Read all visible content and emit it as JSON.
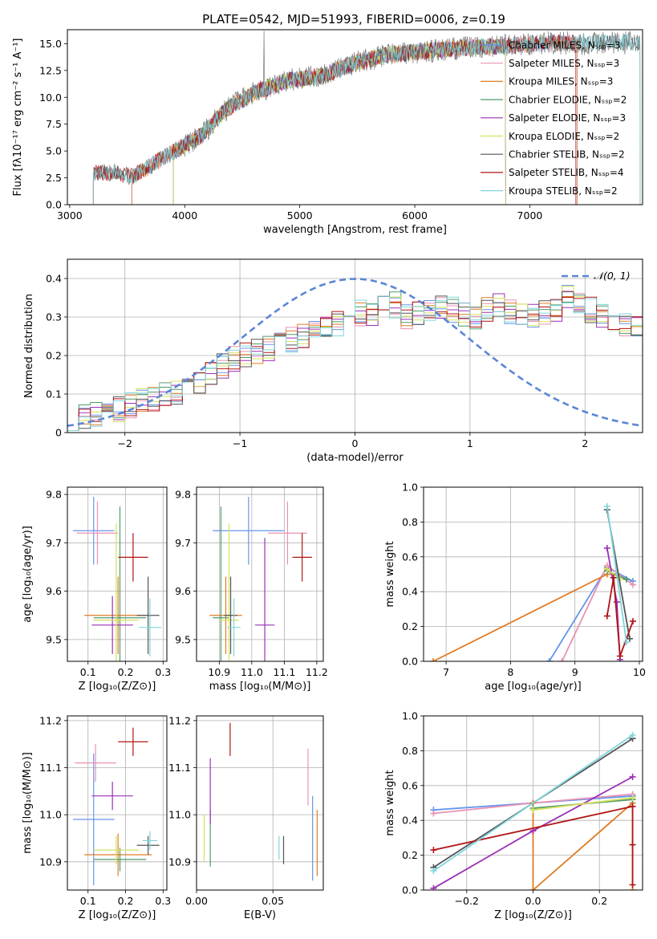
{
  "figure": {
    "title": "PLATE=0542, MJD=51993, FIBERID=0006, z=0.19"
  },
  "colors": {
    "Chabrier MILES": "#6495ed",
    "Salpeter MILES": "#e991b6",
    "Kroupa MILES": "#e07c24",
    "Chabrier ELODIE": "#4f9a6a",
    "Salpeter ELODIE": "#9b30b5",
    "Kroupa ELODIE": "#d6e05a",
    "Chabrier STELIB": "#555555",
    "Salpeter STELIB": "#b01515",
    "Kroupa STELIB": "#7fd6dd"
  },
  "chart_data": [
    {
      "id": "spectrum",
      "type": "line",
      "xlabel": "wavelength [Angstrom, rest frame]",
      "ylabel": "Flux [fλ10⁻¹⁷ erg cm⁻² s⁻¹ A⁻¹]",
      "xlim": [
        2980,
        7980
      ],
      "ylim": [
        0,
        16.3
      ],
      "xticks": [
        3000,
        4000,
        5000,
        6000,
        7000
      ],
      "yticks": [
        0.0,
        2.5,
        5.0,
        7.5,
        10.0,
        12.5,
        15.0
      ],
      "grid": false,
      "legend_position": "right",
      "continuum_knots": [
        [
          3205,
          3.0
        ],
        [
          3400,
          3.0
        ],
        [
          3540,
          2.6
        ],
        [
          3700,
          3.6
        ],
        [
          3850,
          4.6
        ],
        [
          3950,
          5.2
        ],
        [
          4150,
          6.5
        ],
        [
          4350,
          8.8
        ],
        [
          4600,
          10.4
        ],
        [
          4900,
          11.6
        ],
        [
          5200,
          12.0
        ],
        [
          5500,
          13.3
        ],
        [
          5800,
          14.0
        ],
        [
          6100,
          14.3
        ],
        [
          6400,
          14.6
        ],
        [
          6800,
          14.8
        ],
        [
          7200,
          15.1
        ],
        [
          7450,
          15.0
        ],
        [
          7960,
          15.1
        ]
      ],
      "series": [
        {
          "name": "Chabrier MILES, Nₛₛₚ=3",
          "color": "#6495ed",
          "range": [
            3540,
            7410
          ]
        },
        {
          "name": "Salpeter MILES, Nₛₛₚ=3",
          "color": "#e991b6",
          "range": [
            3540,
            7410
          ]
        },
        {
          "name": "Kroupa MILES, Nₛₛₚ=3",
          "color": "#e07c24",
          "range": [
            3540,
            7410
          ]
        },
        {
          "name": "Chabrier ELODIE, Nₛₛₚ=2",
          "color": "#4f9a6a",
          "range": [
            3900,
            6790
          ]
        },
        {
          "name": "Salpeter ELODIE, Nₛₛₚ=3",
          "color": "#9b30b5",
          "range": [
            3900,
            6790
          ]
        },
        {
          "name": "Kroupa ELODIE, Nₛₛₚ=2",
          "color": "#d6e05a",
          "range": [
            3900,
            6790
          ]
        },
        {
          "name": "Chabrier STELIB, Nₛₛₚ=2",
          "color": "#555555",
          "range": [
            3205,
            7960
          ]
        },
        {
          "name": "Salpeter STELIB, Nₛₛₚ=4",
          "color": "#b01515",
          "range": [
            3205,
            7400
          ]
        },
        {
          "name": "Kroupa STELIB, Nₛₛₚ=2",
          "color": "#7fd6dd",
          "range": [
            3205,
            7960
          ]
        }
      ]
    },
    {
      "id": "residuals",
      "type": "area",
      "xlabel": "(data-model)/error",
      "ylabel": "Normed distribution",
      "xlim": [
        -2.5,
        2.5
      ],
      "ylim": [
        0,
        0.45
      ],
      "xticks": [
        -2,
        -1,
        0,
        1,
        2
      ],
      "yticks": [
        0.0,
        0.1,
        0.2,
        0.3,
        0.4
      ],
      "grid": true,
      "legend_position": "top-right",
      "reference_curve": {
        "name": "𝒩(0, 1)",
        "mean": 0,
        "sigma": 1,
        "color": "#5b86d6"
      },
      "bin_width": 0.1,
      "bin_start": -2.5,
      "base_profile": [
        0.04,
        0.045,
        0.05,
        0.055,
        0.06,
        0.07,
        0.08,
        0.09,
        0.095,
        0.1,
        0.11,
        0.13,
        0.15,
        0.17,
        0.19,
        0.2,
        0.21,
        0.22,
        0.23,
        0.24,
        0.25,
        0.26,
        0.27,
        0.28,
        0.3,
        0.31,
        0.3,
        0.32,
        0.33,
        0.3,
        0.31,
        0.32,
        0.33,
        0.32,
        0.31,
        0.3,
        0.32,
        0.33,
        0.31,
        0.31,
        0.3,
        0.31,
        0.32,
        0.35,
        0.33,
        0.32,
        0.3,
        0.29,
        0.28,
        0.28,
        0.27,
        0.26,
        0.25,
        0.22,
        0.2,
        0.19,
        0.18,
        0.18,
        0.17,
        0.16,
        0.15,
        0.14,
        0.13,
        0.12,
        0.11,
        0.1,
        0.095,
        0.09,
        0.085,
        0.08,
        0.075,
        0.07,
        0.065,
        0.06,
        0.055,
        0.05,
        0.05,
        0.045,
        0.045,
        0.04,
        0.04,
        0.04,
        0.04,
        0.04,
        0.04,
        0.04,
        0.04,
        0.04,
        0.04,
        0.04,
        0.04,
        0.04,
        0.04,
        0.04,
        0.04,
        0.04,
        0.04,
        0.04,
        0.04,
        0.04
      ]
    },
    {
      "id": "age_vs_Z",
      "type": "scatter",
      "xlabel": "Z [log₁₀(Z/Z⊙)]",
      "ylabel": "age  [log₁₀(age/yr)]",
      "xlim": [
        0.045,
        0.31
      ],
      "ylim": [
        9.455,
        9.815
      ],
      "xticks": [
        0.1,
        0.2,
        0.3
      ],
      "yticks": [
        9.5,
        9.6,
        9.7,
        9.8
      ],
      "grid": true,
      "points": [
        {
          "series": "Chabrier MILES",
          "x": 0.115,
          "y": 9.725,
          "xerr": 0.055,
          "yerr": 0.07
        },
        {
          "series": "Salpeter MILES",
          "x": 0.125,
          "y": 9.72,
          "xerr": 0.055,
          "yerr": 0.065
        },
        {
          "series": "Kroupa MILES",
          "x": 0.18,
          "y": 9.55,
          "xerr": 0.09,
          "yerr": 0.08
        },
        {
          "series": "Chabrier ELODIE",
          "x": 0.185,
          "y": 9.545,
          "xerr": 0.07,
          "yerr": 0.23
        },
        {
          "series": "Salpeter ELODIE",
          "x": 0.165,
          "y": 9.53,
          "xerr": 0.055,
          "yerr": 0.06
        },
        {
          "series": "Kroupa ELODIE",
          "x": 0.175,
          "y": 9.54,
          "xerr": 0.06,
          "yerr": 0.2
        },
        {
          "series": "Chabrier STELIB",
          "x": 0.26,
          "y": 9.55,
          "xerr": 0.03,
          "yerr": 0.08
        },
        {
          "series": "Salpeter STELIB",
          "x": 0.22,
          "y": 9.67,
          "xerr": 0.04,
          "yerr": 0.05
        },
        {
          "series": "Kroupa STELIB",
          "x": 0.265,
          "y": 9.525,
          "xerr": 0.03,
          "yerr": 0.06
        }
      ]
    },
    {
      "id": "age_vs_mass",
      "type": "scatter",
      "xlabel": "mass [log₁₀(M/M⊙)]",
      "ylabel": "",
      "xlim": [
        10.83,
        11.22
      ],
      "ylim": [
        9.455,
        9.815
      ],
      "xticks": [
        10.9,
        11.0,
        11.1,
        11.2
      ],
      "yticks": [
        9.5,
        9.6,
        9.7,
        9.8
      ],
      "grid": true,
      "points": [
        {
          "series": "Chabrier MILES",
          "x": 10.99,
          "y": 9.725,
          "xerr": 0.11,
          "yerr": 0.07
        },
        {
          "series": "Salpeter MILES",
          "x": 11.11,
          "y": 9.72,
          "xerr": 0.06,
          "yerr": 0.065
        },
        {
          "series": "Kroupa MILES",
          "x": 10.92,
          "y": 9.55,
          "xerr": 0.05,
          "yerr": 0.08
        },
        {
          "series": "Chabrier ELODIE",
          "x": 10.905,
          "y": 9.545,
          "xerr": 0.025,
          "yerr": 0.23
        },
        {
          "series": "Salpeter ELODIE",
          "x": 11.04,
          "y": 9.53,
          "xerr": 0.03,
          "yerr": 0.18
        },
        {
          "series": "Kroupa ELODIE",
          "x": 10.93,
          "y": 9.54,
          "xerr": 0.03,
          "yerr": 0.2
        },
        {
          "series": "Chabrier STELIB",
          "x": 10.935,
          "y": 9.55,
          "xerr": 0.02,
          "yerr": 0.08
        },
        {
          "series": "Salpeter STELIB",
          "x": 11.155,
          "y": 9.67,
          "xerr": 0.03,
          "yerr": 0.05
        },
        {
          "series": "Kroupa STELIB",
          "x": 10.945,
          "y": 9.525,
          "xerr": 0.02,
          "yerr": 0.06
        }
      ]
    },
    {
      "id": "weight_vs_age",
      "type": "line",
      "xlabel": "age  [log₁₀(age/yr)]",
      "ylabel": "mass weight",
      "xlim": [
        6.65,
        10.05
      ],
      "ylim": [
        0,
        1.0
      ],
      "xticks": [
        7,
        8,
        9,
        10
      ],
      "yticks": [
        0.0,
        0.2,
        0.4,
        0.6,
        0.8,
        1.0
      ],
      "grid": true,
      "series": [
        {
          "name": "Chabrier MILES",
          "color": "#6495ed",
          "x": [
            8.6,
            9.5,
            9.9
          ],
          "y": [
            0.0,
            0.54,
            0.46
          ]
        },
        {
          "name": "Salpeter MILES",
          "color": "#e991b6",
          "x": [
            8.8,
            9.5,
            9.9
          ],
          "y": [
            0.0,
            0.55,
            0.44
          ]
        },
        {
          "name": "Kroupa MILES",
          "color": "#e07c24",
          "x": [
            6.8,
            9.5,
            9.65
          ],
          "y": [
            0.0,
            0.5,
            0.5
          ]
        },
        {
          "name": "Chabrier ELODIE",
          "color": "#4f9a6a",
          "x": [
            9.5,
            9.8
          ],
          "y": [
            0.52,
            0.47
          ]
        },
        {
          "name": "Salpeter ELODIE",
          "color": "#9b30b5",
          "x": [
            9.5,
            9.65,
            9.7
          ],
          "y": [
            0.65,
            0.34,
            0.01
          ]
        },
        {
          "name": "Kroupa ELODIE",
          "color": "#d6e05a",
          "x": [
            9.5,
            9.7
          ],
          "y": [
            0.53,
            0.47
          ]
        },
        {
          "name": "Chabrier STELIB",
          "color": "#555555",
          "x": [
            9.5,
            9.85
          ],
          "y": [
            0.87,
            0.13
          ]
        },
        {
          "name": "Salpeter STELIB",
          "color": "#b01515",
          "x": [
            9.5,
            9.6,
            9.7,
            9.9
          ],
          "y": [
            0.26,
            0.48,
            0.03,
            0.23
          ]
        },
        {
          "name": "Kroupa STELIB",
          "color": "#7fd6dd",
          "x": [
            9.5,
            9.8
          ],
          "y": [
            0.89,
            0.11
          ]
        }
      ]
    },
    {
      "id": "mass_vs_Z",
      "type": "scatter",
      "xlabel": "Z [log₁₀(Z/Z⊙)]",
      "ylabel": "mass [log₁₀(M/M⊙)]",
      "xlim": [
        0.045,
        0.31
      ],
      "ylim": [
        10.84,
        11.21
      ],
      "xticks": [
        0.1,
        0.2,
        0.3
      ],
      "yticks": [
        10.9,
        11.0,
        11.1,
        11.2
      ],
      "grid": true,
      "points": [
        {
          "series": "Chabrier MILES",
          "x": 0.115,
          "y": 10.99,
          "xerr": 0.055,
          "yerr": 0.14
        },
        {
          "series": "Salpeter MILES",
          "x": 0.12,
          "y": 11.11,
          "xerr": 0.055,
          "yerr": 0.04
        },
        {
          "series": "Kroupa MILES",
          "x": 0.18,
          "y": 10.915,
          "xerr": 0.09,
          "yerr": 0.045
        },
        {
          "series": "Chabrier ELODIE",
          "x": 0.185,
          "y": 10.905,
          "xerr": 0.07,
          "yerr": 0.025
        },
        {
          "series": "Salpeter ELODIE",
          "x": 0.165,
          "y": 11.04,
          "xerr": 0.055,
          "yerr": 0.03
        },
        {
          "series": "Kroupa ELODIE",
          "x": 0.175,
          "y": 10.925,
          "xerr": 0.06,
          "yerr": 0.03
        },
        {
          "series": "Chabrier STELIB",
          "x": 0.26,
          "y": 10.935,
          "xerr": 0.03,
          "yerr": 0.02
        },
        {
          "series": "Salpeter STELIB",
          "x": 0.22,
          "y": 11.155,
          "xerr": 0.04,
          "yerr": 0.03
        },
        {
          "series": "Kroupa STELIB",
          "x": 0.265,
          "y": 10.945,
          "xerr": 0.02,
          "yerr": 0.02
        }
      ]
    },
    {
      "id": "mass_vs_ebv",
      "type": "scatter",
      "xlabel": "E(B-V)",
      "ylabel": "",
      "xlim": [
        0,
        0.083
      ],
      "ylim": [
        10.84,
        11.21
      ],
      "xticks": [
        0.0,
        0.05
      ],
      "yticks": [
        10.9,
        11.0,
        11.1,
        11.2
      ],
      "grid": true,
      "points": [
        {
          "series": "Chabrier MILES",
          "x": 0.076,
          "y": 10.95,
          "xerr": 0.0,
          "yerr": 0.09
        },
        {
          "series": "Salpeter MILES",
          "x": 0.073,
          "y": 11.08,
          "xerr": 0.0,
          "yerr": 0.06
        },
        {
          "series": "Kroupa MILES",
          "x": 0.079,
          "y": 10.94,
          "xerr": 0.0,
          "yerr": 0.07
        },
        {
          "series": "Chabrier ELODIE",
          "x": 0.009,
          "y": 10.95,
          "xerr": 0.0,
          "yerr": 0.06
        },
        {
          "series": "Salpeter ELODIE",
          "x": 0.009,
          "y": 11.05,
          "xerr": 0.0,
          "yerr": 0.07
        },
        {
          "series": "Kroupa ELODIE",
          "x": 0.005,
          "y": 10.95,
          "xerr": 0.0,
          "yerr": 0.05
        },
        {
          "series": "Chabrier STELIB",
          "x": 0.057,
          "y": 10.925,
          "xerr": 0.0,
          "yerr": 0.03
        },
        {
          "series": "Salpeter STELIB",
          "x": 0.022,
          "y": 11.16,
          "xerr": 0.0,
          "yerr": 0.035
        },
        {
          "series": "Kroupa STELIB",
          "x": 0.054,
          "y": 10.93,
          "xerr": 0.0,
          "yerr": 0.025
        }
      ]
    },
    {
      "id": "weight_vs_Z",
      "type": "line",
      "xlabel": "Z [log₁₀(Z/Z⊙)]",
      "ylabel": "mass weight",
      "xlim": [
        -0.33,
        0.33
      ],
      "ylim": [
        0,
        1.0
      ],
      "xticks": [
        -0.2,
        0.0,
        0.2
      ],
      "yticks": [
        0.0,
        0.2,
        0.4,
        0.6,
        0.8,
        1.0
      ],
      "grid": true,
      "series": [
        {
          "name": "Chabrier MILES",
          "color": "#6495ed",
          "x": [
            -0.3,
            0.0,
            0.3
          ],
          "y": [
            0.46,
            0.5,
            0.54
          ]
        },
        {
          "name": "Salpeter MILES",
          "color": "#e991b6",
          "x": [
            -0.3,
            0.0,
            0.3
          ],
          "y": [
            0.44,
            0.5,
            0.55
          ]
        },
        {
          "name": "Kroupa MILES",
          "color": "#e07c24",
          "x": [
            0.0,
            0.0,
            0.3,
            0.3
          ],
          "y": [
            0.5,
            0.0,
            0.5,
            0.0
          ]
        },
        {
          "name": "Chabrier ELODIE",
          "color": "#4f9a6a",
          "x": [
            0.0,
            0.3
          ],
          "y": [
            0.47,
            0.52
          ]
        },
        {
          "name": "Salpeter ELODIE",
          "color": "#9b30b5",
          "x": [
            -0.3,
            0.0,
            0.3
          ],
          "y": [
            0.01,
            0.34,
            0.65
          ]
        },
        {
          "name": "Kroupa ELODIE",
          "color": "#d6e05a",
          "x": [
            0.0,
            0.3
          ],
          "y": [
            0.46,
            0.53
          ]
        },
        {
          "name": "Chabrier STELIB",
          "color": "#555555",
          "x": [
            -0.3,
            0.3
          ],
          "y": [
            0.13,
            0.87
          ]
        },
        {
          "name": "Salpeter STELIB",
          "color": "#b01515",
          "x": [
            -0.3,
            0.3,
            0.3,
            0.3
          ],
          "y": [
            0.23,
            0.48,
            0.26,
            0.03
          ]
        },
        {
          "name": "Kroupa STELIB",
          "color": "#7fd6dd",
          "x": [
            -0.3,
            0.3
          ],
          "y": [
            0.11,
            0.89
          ]
        }
      ]
    }
  ]
}
